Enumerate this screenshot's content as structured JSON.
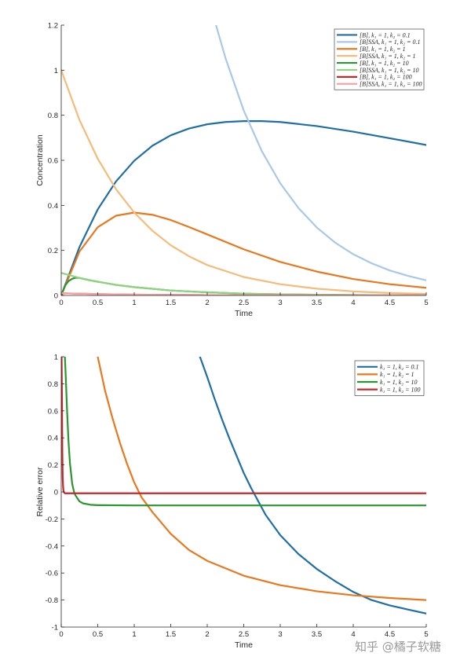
{
  "chart_data": [
    {
      "type": "line",
      "xlabel": "Time",
      "ylabel": "Concentration",
      "xlim": [
        0,
        5
      ],
      "ylim": [
        0,
        1.2
      ],
      "xticks": [
        "0",
        "0.5",
        "1",
        "1.5",
        "2",
        "2.5",
        "3",
        "3.5",
        "4",
        "4.5",
        "5"
      ],
      "yticks": [
        "0",
        "0.2",
        "0.4",
        "0.6",
        "0.8",
        "1",
        "1.2"
      ],
      "grid": false,
      "legend_position": "top-right",
      "series": [
        {
          "name": "[B],      k₁ = 1, k₂ = 0.1",
          "color": "#1f6ea6",
          "x": [
            0,
            0.25,
            0.5,
            0.75,
            1,
            1.25,
            1.5,
            1.75,
            2,
            2.25,
            2.5,
            2.75,
            3,
            3.5,
            4,
            4.5,
            5
          ],
          "y": [
            0,
            0.215,
            0.382,
            0.506,
            0.598,
            0.665,
            0.711,
            0.741,
            0.76,
            0.77,
            0.774,
            0.774,
            0.77,
            0.752,
            0.727,
            0.698,
            0.668
          ]
        },
        {
          "name": "[B]SSA, k₁ = 1, k₂ = 0.1",
          "color": "#a9c8e8",
          "x": [
            2.12,
            2.25,
            2.5,
            2.75,
            3,
            3.25,
            3.5,
            3.75,
            4,
            4.25,
            4.5,
            4.75,
            5
          ],
          "y": [
            1.2,
            1.054,
            0.821,
            0.639,
            0.498,
            0.388,
            0.302,
            0.235,
            0.183,
            0.143,
            0.111,
            0.087,
            0.067
          ]
        },
        {
          "name": "[B],      k₁ = 1, k₂ = 1",
          "color": "#e8781e",
          "x": [
            0,
            0.25,
            0.5,
            0.75,
            1,
            1.25,
            1.5,
            1.75,
            2,
            2.5,
            3,
            3.5,
            4,
            4.5,
            5
          ],
          "y": [
            0,
            0.195,
            0.303,
            0.354,
            0.368,
            0.358,
            0.335,
            0.304,
            0.271,
            0.205,
            0.149,
            0.106,
            0.073,
            0.05,
            0.034
          ]
        },
        {
          "name": "[B]SSA, k₁ = 1, k₂ = 1",
          "color": "#f5bb7a",
          "x": [
            0,
            0.25,
            0.5,
            0.75,
            1,
            1.25,
            1.5,
            1.75,
            2,
            2.5,
            3,
            3.5,
            4,
            4.5,
            5
          ],
          "y": [
            1,
            0.779,
            0.607,
            0.472,
            0.368,
            0.287,
            0.223,
            0.174,
            0.135,
            0.082,
            0.05,
            0.03,
            0.018,
            0.011,
            0.007
          ]
        },
        {
          "name": "[B],      k₁ = 1, k₂ = 10",
          "color": "#2a9630",
          "x": [
            0,
            0.05,
            0.1,
            0.15,
            0.2,
            0.25,
            0.3,
            0.4,
            0.5,
            0.75,
            1,
            1.5,
            2,
            2.5,
            3,
            3.5,
            4,
            4.5,
            5
          ],
          "y": [
            0,
            0.043,
            0.064,
            0.074,
            0.079,
            0.078,
            0.074,
            0.067,
            0.061,
            0.047,
            0.037,
            0.022,
            0.014,
            0.008,
            0.005,
            0.003,
            0.002,
            0.001,
            0.001
          ]
        },
        {
          "name": "[B]SSA, k₁ = 1, k₂ = 10",
          "color": "#8fd47c",
          "x": [
            0,
            0.25,
            0.5,
            0.75,
            1,
            1.5,
            2,
            2.5,
            3,
            3.5,
            4,
            4.5,
            5
          ],
          "y": [
            0.1,
            0.078,
            0.061,
            0.047,
            0.037,
            0.022,
            0.014,
            0.008,
            0.005,
            0.003,
            0.002,
            0.001,
            0.001
          ]
        },
        {
          "name": "[B],      k₁ = 1, k₂ = 100",
          "color": "#c42828",
          "x": [
            0,
            0.02,
            0.05,
            0.1,
            0.5,
            1,
            2,
            3,
            4,
            5
          ],
          "y": [
            0,
            0.0087,
            0.0095,
            0.009,
            0.006,
            0.0037,
            0.0014,
            0.0005,
            0.0002,
            0.0001
          ]
        },
        {
          "name": "[B]SSA, k₁ = 1, k₂ = 100",
          "color": "#f4a3a3",
          "x": [
            0,
            0.1,
            0.5,
            1,
            2,
            3,
            4,
            5
          ],
          "y": [
            0.01,
            0.009,
            0.006,
            0.0037,
            0.0014,
            0.0005,
            0.0002,
            0.0001
          ]
        }
      ]
    },
    {
      "type": "line",
      "xlabel": "Time",
      "ylabel": "Relative error",
      "xlim": [
        0,
        5
      ],
      "ylim": [
        -1,
        1
      ],
      "xticks": [
        "0",
        "0.5",
        "1",
        "1.5",
        "2",
        "2.5",
        "3",
        "3.5",
        "4",
        "4.5",
        "5"
      ],
      "yticks": [
        "-1",
        "-0.8",
        "-0.6",
        "-0.4",
        "-0.2",
        "0",
        "0.2",
        "0.4",
        "0.6",
        "0.8",
        "1"
      ],
      "grid": false,
      "legend_position": "top-right",
      "series": [
        {
          "name": "k₁ = 1, k₂ = 0.1",
          "color": "#1f6ea6",
          "x": [
            1.9,
            2.0,
            2.1,
            2.2,
            2.3,
            2.4,
            2.5,
            2.6,
            2.7,
            2.8,
            3.0,
            3.25,
            3.5,
            3.75,
            4,
            4.25,
            4.5,
            4.75,
            5
          ],
          "y": [
            1,
            0.85,
            0.69,
            0.54,
            0.4,
            0.27,
            0.14,
            0.03,
            -0.07,
            -0.17,
            -0.32,
            -0.46,
            -0.57,
            -0.66,
            -0.74,
            -0.8,
            -0.84,
            -0.87,
            -0.9
          ]
        },
        {
          "name": "k₁ = 1, k₂ = 1",
          "color": "#e8781e",
          "x": [
            0.5,
            0.6,
            0.7,
            0.8,
            0.9,
            1.0,
            1.1,
            1.25,
            1.5,
            1.75,
            2,
            2.5,
            3,
            3.5,
            4,
            4.5,
            5
          ],
          "y": [
            1,
            0.75,
            0.55,
            0.37,
            0.21,
            0.07,
            -0.04,
            -0.15,
            -0.31,
            -0.43,
            -0.51,
            -0.62,
            -0.69,
            -0.735,
            -0.765,
            -0.785,
            -0.8
          ]
        },
        {
          "name": "k₁ = 1, k₂ = 10",
          "color": "#2a9630",
          "x": [
            0.05,
            0.06,
            0.08,
            0.1,
            0.12,
            0.15,
            0.18,
            0.2,
            0.25,
            0.3,
            0.4,
            0.5,
            1,
            2,
            3,
            4,
            5
          ],
          "y": [
            1,
            0.88,
            0.6,
            0.37,
            0.21,
            0.06,
            -0.01,
            -0.03,
            -0.07,
            -0.085,
            -0.095,
            -0.098,
            -0.1,
            -0.1,
            -0.1,
            -0.1,
            -0.1
          ]
        },
        {
          "name": "k₁ = 1, k₂ = 100",
          "color": "#c42828",
          "x": [
            0.005,
            0.01,
            0.015,
            0.02,
            0.025,
            0.03,
            0.04,
            0.05,
            0.1,
            1,
            2,
            3,
            4,
            5
          ],
          "y": [
            1,
            0.7,
            0.3,
            0.11,
            0.04,
            0.01,
            -0.005,
            -0.01,
            -0.01,
            -0.01,
            -0.01,
            -0.01,
            -0.01,
            -0.01
          ]
        }
      ]
    }
  ],
  "watermark": "知乎 @橘子软糖"
}
